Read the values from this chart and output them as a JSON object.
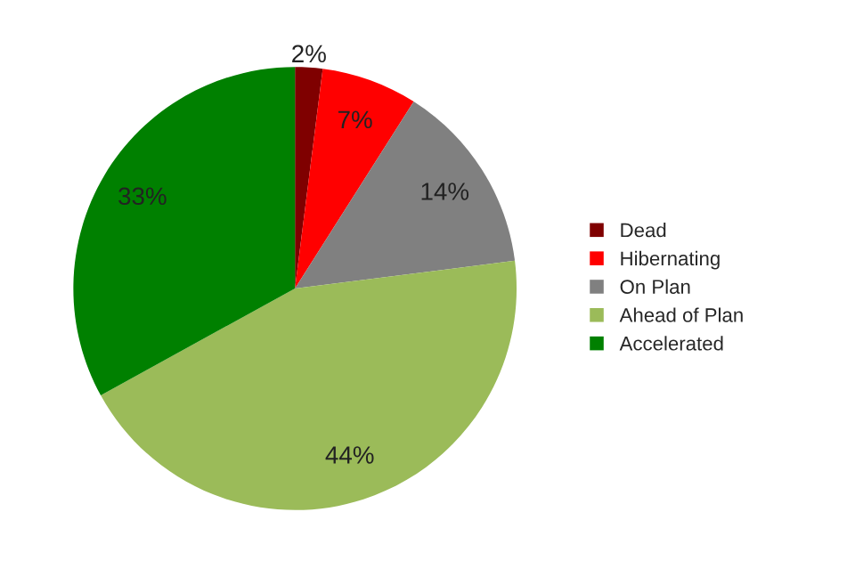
{
  "chart_data": {
    "type": "pie",
    "categories": [
      "Dead",
      "Hibernating",
      "On Plan",
      "Ahead of Plan",
      "Accelerated"
    ],
    "values": [
      2,
      7,
      14,
      44,
      33
    ],
    "value_labels": [
      "2%",
      "7%",
      "14%",
      "44%",
      "33%"
    ],
    "colors": [
      "#7f0000",
      "#ff0000",
      "#808080",
      "#9bbb59",
      "#008000"
    ],
    "legend": "right"
  }
}
